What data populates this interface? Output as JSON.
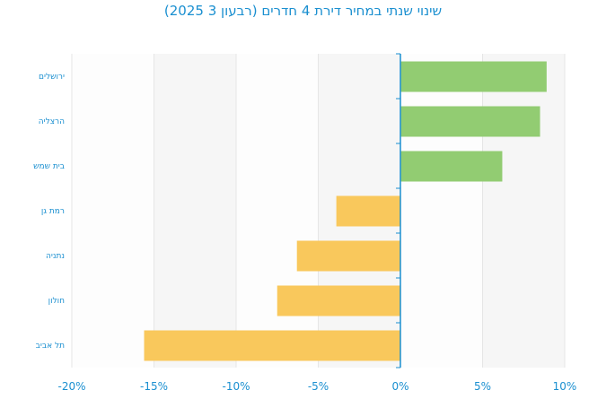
{
  "chart_data": {
    "type": "bar",
    "orientation": "horizontal",
    "title": "שינוי שנתי במחיר דירת 4 חדרים (רבעון 3 2025)",
    "categories": [
      "ירושלים",
      "הרצליה",
      "בית שמש",
      "רמת גן",
      "נתניה",
      "חולון",
      "תל אביב"
    ],
    "values": [
      8.9,
      8.5,
      6.2,
      -3.9,
      -6.3,
      -7.5,
      -15.6
    ],
    "xlim": [
      -20,
      10
    ],
    "xticks": [
      -20,
      -15,
      -10,
      -5,
      0,
      5,
      10
    ],
    "xtick_labels": [
      "-20%",
      "-15%",
      "-10%",
      "-5%",
      "0%",
      "5%",
      "10%"
    ],
    "colors": {
      "positive": "#92cc72",
      "negative": "#f9c85c",
      "axis": "#1a8fd0"
    },
    "grid": true
  }
}
